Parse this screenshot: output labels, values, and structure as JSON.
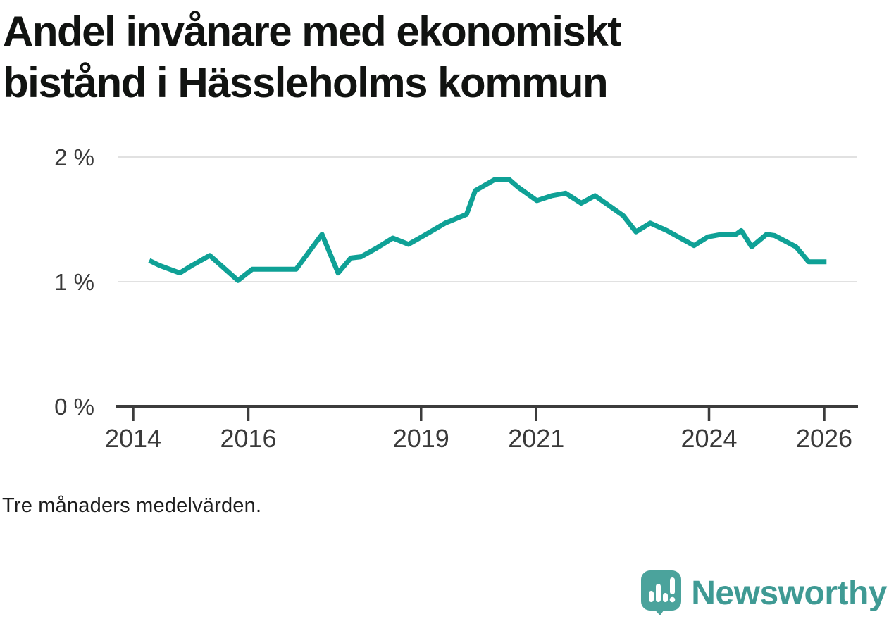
{
  "title": "Andel invånare med ekonomiskt\nbistånd i Hässleholms kommun",
  "footnote": "Tre månaders medelvärden.",
  "logo": {
    "text": "Newsworthy",
    "icon": "newsworthy-speech-bubble-bar-chart-icon"
  },
  "colors": {
    "title": "#111311",
    "line": "#0fa196",
    "grid": "#e1e1e1",
    "axis": "#3c3c3c",
    "tick_label": "#3a3a3a",
    "logo_icon": "#4ba39c",
    "logo_text": "#3f9a94",
    "background": "#ffffff"
  },
  "chart_data": {
    "type": "line",
    "title": "Andel invånare med ekonomiskt bistånd i Hässleholms kommun",
    "subtitle": "Tre månaders medelvärden.",
    "unit": "%",
    "grid": "horizontal-only",
    "legend": "none",
    "xlim": [
      2013.7,
      2026.6
    ],
    "ylim": [
      0,
      2.2
    ],
    "x_ticks": [
      {
        "value": 2014,
        "label": "2014"
      },
      {
        "value": 2016,
        "label": "2016"
      },
      {
        "value": 2019,
        "label": "2019"
      },
      {
        "value": 2021,
        "label": "2021"
      },
      {
        "value": 2024,
        "label": "2024"
      },
      {
        "value": 2026,
        "label": "2026"
      }
    ],
    "y_ticks": [
      {
        "value": 0,
        "label": "0 %"
      },
      {
        "value": 1,
        "label": "1 %"
      },
      {
        "value": 2,
        "label": "2 %"
      }
    ],
    "series": [
      {
        "name": "Andel invånare med ekonomiskt bistånd",
        "x": [
          2014.28,
          2014.46,
          2014.81,
          2015.02,
          2015.33,
          2015.82,
          2016.07,
          2016.83,
          2017.28,
          2017.56,
          2017.78,
          2017.96,
          2018.23,
          2018.51,
          2018.78,
          2019.05,
          2019.42,
          2019.79,
          2019.94,
          2020.28,
          2020.53,
          2020.68,
          2021.01,
          2021.27,
          2021.51,
          2021.78,
          2022.02,
          2022.51,
          2022.73,
          2022.98,
          2023.27,
          2023.74,
          2023.98,
          2024.23,
          2024.47,
          2024.56,
          2024.74,
          2025.0,
          2025.14,
          2025.51,
          2025.73,
          2026.04
        ],
        "values": [
          1.17,
          1.13,
          1.07,
          1.13,
          1.21,
          1.01,
          1.1,
          1.1,
          1.38,
          1.07,
          1.19,
          1.2,
          1.27,
          1.35,
          1.3,
          1.37,
          1.47,
          1.54,
          1.73,
          1.82,
          1.82,
          1.76,
          1.65,
          1.69,
          1.71,
          1.63,
          1.69,
          1.53,
          1.4,
          1.47,
          1.41,
          1.29,
          1.36,
          1.38,
          1.38,
          1.41,
          1.28,
          1.38,
          1.37,
          1.28,
          1.16,
          1.16
        ]
      }
    ]
  }
}
